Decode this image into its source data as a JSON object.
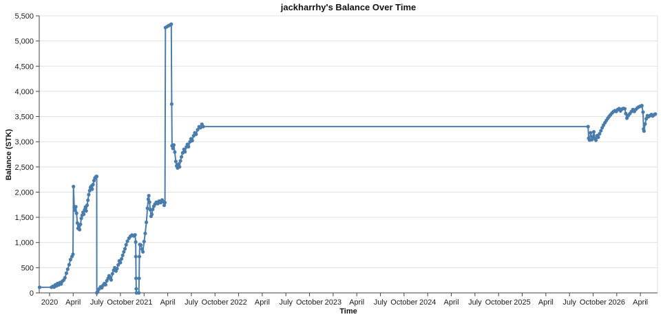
{
  "chart_data": {
    "type": "line",
    "title": "jackharrhy's Balance Over Time",
    "xlabel": "Time",
    "ylabel": "Balance (STK)",
    "xlim": [
      2019.891,
      2026.431
    ],
    "ylim": [
      0,
      5500
    ],
    "grid": "horizontal",
    "legend": "none",
    "colors": {
      "line": "#4a7cab",
      "grid": "#e0e0e0",
      "axis": "#424242",
      "text": "#1a1a1a"
    },
    "xticks": [
      {
        "v": 2020.0,
        "label": "2020"
      },
      {
        "v": 2020.25,
        "label": "April"
      },
      {
        "v": 2020.5,
        "label": "July"
      },
      {
        "v": 2020.75,
        "label": "October"
      },
      {
        "v": 2021.0,
        "label": "2021"
      },
      {
        "v": 2021.25,
        "label": "April"
      },
      {
        "v": 2021.5,
        "label": "July"
      },
      {
        "v": 2021.75,
        "label": "October"
      },
      {
        "v": 2022.0,
        "label": "2022"
      },
      {
        "v": 2022.25,
        "label": "April"
      },
      {
        "v": 2022.5,
        "label": "July"
      },
      {
        "v": 2022.75,
        "label": "October"
      },
      {
        "v": 2023.0,
        "label": "2023"
      },
      {
        "v": 2023.25,
        "label": "April"
      },
      {
        "v": 2023.5,
        "label": "July"
      },
      {
        "v": 2023.75,
        "label": "October"
      },
      {
        "v": 2024.0,
        "label": "2024"
      },
      {
        "v": 2024.25,
        "label": "April"
      },
      {
        "v": 2024.5,
        "label": "July"
      },
      {
        "v": 2024.75,
        "label": "October"
      },
      {
        "v": 2025.0,
        "label": "2025"
      },
      {
        "v": 2025.25,
        "label": "April"
      },
      {
        "v": 2025.5,
        "label": "July"
      },
      {
        "v": 2025.75,
        "label": "October"
      },
      {
        "v": 2026.0,
        "label": "2026"
      },
      {
        "v": 2026.25,
        "label": "April"
      }
    ],
    "yticks": [
      {
        "v": 0,
        "label": "0"
      },
      {
        "v": 500,
        "label": "500"
      },
      {
        "v": 1000,
        "label": "1,000"
      },
      {
        "v": 1500,
        "label": "1,500"
      },
      {
        "v": 2000,
        "label": "2,000"
      },
      {
        "v": 2500,
        "label": "2,500"
      },
      {
        "v": 3000,
        "label": "3,000"
      },
      {
        "v": 3500,
        "label": "3,500"
      },
      {
        "v": 4000,
        "label": "4,000"
      },
      {
        "v": 4500,
        "label": "4,500"
      },
      {
        "v": 5000,
        "label": "5,000"
      },
      {
        "v": 5500,
        "label": "5,500"
      }
    ],
    "series": [
      {
        "name": "balance",
        "points": [
          [
            2019.895,
            110
          ],
          [
            2020.02,
            112
          ],
          [
            2020.035,
            130
          ],
          [
            2020.048,
            115
          ],
          [
            2020.06,
            160
          ],
          [
            2020.073,
            138
          ],
          [
            2020.085,
            185
          ],
          [
            2020.098,
            158
          ],
          [
            2020.11,
            205
          ],
          [
            2020.123,
            178
          ],
          [
            2020.135,
            230
          ],
          [
            2020.15,
            255
          ],
          [
            2020.163,
            300
          ],
          [
            2020.178,
            390
          ],
          [
            2020.192,
            470
          ],
          [
            2020.207,
            560
          ],
          [
            2020.222,
            660
          ],
          [
            2020.237,
            720
          ],
          [
            2020.248,
            765
          ],
          [
            2020.253,
            2110
          ],
          [
            2020.262,
            1700
          ],
          [
            2020.27,
            1640
          ],
          [
            2020.278,
            1710
          ],
          [
            2020.286,
            1580
          ],
          [
            2020.294,
            1390
          ],
          [
            2020.302,
            1280
          ],
          [
            2020.31,
            1330
          ],
          [
            2020.318,
            1255
          ],
          [
            2020.327,
            1360
          ],
          [
            2020.336,
            1480
          ],
          [
            2020.345,
            1540
          ],
          [
            2020.354,
            1600
          ],
          [
            2020.362,
            1560
          ],
          [
            2020.371,
            1650
          ],
          [
            2020.38,
            1705
          ],
          [
            2020.388,
            1625
          ],
          [
            2020.397,
            1740
          ],
          [
            2020.406,
            1840
          ],
          [
            2020.415,
            1950
          ],
          [
            2020.424,
            2030
          ],
          [
            2020.433,
            2090
          ],
          [
            2020.442,
            2120
          ],
          [
            2020.451,
            2060
          ],
          [
            2020.46,
            2150
          ],
          [
            2020.47,
            2230
          ],
          [
            2020.48,
            2280
          ],
          [
            2020.493,
            2310
          ],
          [
            2020.499,
            2312
          ],
          [
            2020.5,
            0
          ],
          [
            2020.51,
            30
          ],
          [
            2020.525,
            80
          ],
          [
            2020.54,
            120
          ],
          [
            2020.553,
            100
          ],
          [
            2020.566,
            150
          ],
          [
            2020.58,
            185
          ],
          [
            2020.593,
            162
          ],
          [
            2020.606,
            240
          ],
          [
            2020.619,
            290
          ],
          [
            2020.63,
            340
          ],
          [
            2020.641,
            300
          ],
          [
            2020.652,
            258
          ],
          [
            2020.665,
            380
          ],
          [
            2020.678,
            450
          ],
          [
            2020.69,
            500
          ],
          [
            2020.702,
            432
          ],
          [
            2020.714,
            480
          ],
          [
            2020.726,
            555
          ],
          [
            2020.738,
            635
          ],
          [
            2020.75,
            600
          ],
          [
            2020.762,
            675
          ],
          [
            2020.774,
            745
          ],
          [
            2020.786,
            815
          ],
          [
            2020.798,
            875
          ],
          [
            2020.81,
            955
          ],
          [
            2020.824,
            1025
          ],
          [
            2020.84,
            1085
          ],
          [
            2020.856,
            1125
          ],
          [
            2020.872,
            1148
          ],
          [
            2020.89,
            1132
          ],
          [
            2020.905,
            1152
          ],
          [
            2020.911,
            1010
          ],
          [
            2020.913,
            720
          ],
          [
            2020.915,
            290
          ],
          [
            2020.917,
            80
          ],
          [
            2020.919,
            0
          ],
          [
            2020.945,
            0
          ],
          [
            2020.948,
            290
          ],
          [
            2020.951,
            720
          ],
          [
            2020.954,
            960
          ],
          [
            2020.966,
            950
          ],
          [
            2020.978,
            868
          ],
          [
            2020.988,
            815
          ],
          [
            2021.0,
            1020
          ],
          [
            2021.012,
            1180
          ],
          [
            2021.024,
            1400
          ],
          [
            2021.036,
            1680
          ],
          [
            2021.044,
            1860
          ],
          [
            2021.05,
            1930
          ],
          [
            2021.058,
            1800
          ],
          [
            2021.066,
            1650
          ],
          [
            2021.074,
            1520
          ],
          [
            2021.082,
            1560
          ],
          [
            2021.092,
            1660
          ],
          [
            2021.103,
            1720
          ],
          [
            2021.115,
            1762
          ],
          [
            2021.13,
            1800
          ],
          [
            2021.145,
            1772
          ],
          [
            2021.16,
            1822
          ],
          [
            2021.175,
            1790
          ],
          [
            2021.19,
            1845
          ],
          [
            2021.203,
            1808
          ],
          [
            2021.213,
            1738
          ],
          [
            2021.221,
            1792
          ],
          [
            2021.226,
            5265
          ],
          [
            2021.242,
            5285
          ],
          [
            2021.258,
            5302
          ],
          [
            2021.274,
            5318
          ],
          [
            2021.288,
            5335
          ],
          [
            2021.292,
            3747
          ],
          [
            2021.296,
            2920
          ],
          [
            2021.305,
            2868
          ],
          [
            2021.315,
            2935
          ],
          [
            2021.325,
            2795
          ],
          [
            2021.335,
            2610
          ],
          [
            2021.345,
            2520
          ],
          [
            2021.355,
            2480
          ],
          [
            2021.365,
            2558
          ],
          [
            2021.375,
            2502
          ],
          [
            2021.385,
            2620
          ],
          [
            2021.396,
            2700
          ],
          [
            2021.408,
            2778
          ],
          [
            2021.422,
            2850
          ],
          [
            2021.433,
            2800
          ],
          [
            2021.447,
            2898
          ],
          [
            2021.458,
            2948
          ],
          [
            2021.47,
            2902
          ],
          [
            2021.485,
            3000
          ],
          [
            2021.497,
            3058
          ],
          [
            2021.509,
            3022
          ],
          [
            2021.524,
            3118
          ],
          [
            2021.537,
            3178
          ],
          [
            2021.55,
            3148
          ],
          [
            2021.566,
            3238
          ],
          [
            2021.582,
            3298
          ],
          [
            2021.596,
            3278
          ],
          [
            2021.612,
            3348
          ],
          [
            2021.625,
            3302
          ],
          [
            2025.697,
            3302
          ],
          [
            2025.703,
            3070
          ],
          [
            2025.712,
            3032
          ],
          [
            2025.724,
            3178
          ],
          [
            2025.737,
            3042
          ],
          [
            2025.747,
            3098
          ],
          [
            2025.757,
            3198
          ],
          [
            2025.77,
            3062
          ],
          [
            2025.78,
            3030
          ],
          [
            2025.792,
            3120
          ],
          [
            2025.805,
            3088
          ],
          [
            2025.818,
            3158
          ],
          [
            2025.832,
            3218
          ],
          [
            2025.846,
            3278
          ],
          [
            2025.86,
            3330
          ],
          [
            2025.875,
            3378
          ],
          [
            2025.89,
            3422
          ],
          [
            2025.905,
            3465
          ],
          [
            2025.92,
            3502
          ],
          [
            2025.935,
            3538
          ],
          [
            2025.95,
            3570
          ],
          [
            2025.965,
            3598
          ],
          [
            2025.98,
            3620
          ],
          [
            2025.995,
            3600
          ],
          [
            2026.01,
            3638
          ],
          [
            2026.025,
            3658
          ],
          [
            2026.04,
            3612
          ],
          [
            2026.055,
            3648
          ],
          [
            2026.07,
            3662
          ],
          [
            2026.085,
            3655
          ],
          [
            2026.095,
            3560
          ],
          [
            2026.108,
            3468
          ],
          [
            2026.122,
            3520
          ],
          [
            2026.138,
            3558
          ],
          [
            2026.154,
            3598
          ],
          [
            2026.17,
            3638
          ],
          [
            2026.186,
            3602
          ],
          [
            2026.202,
            3642
          ],
          [
            2026.218,
            3672
          ],
          [
            2026.234,
            3692
          ],
          [
            2026.25,
            3705
          ],
          [
            2026.266,
            3718
          ],
          [
            2026.278,
            3588
          ],
          [
            2026.284,
            3255
          ],
          [
            2026.288,
            3212
          ],
          [
            2026.3,
            3352
          ],
          [
            2026.312,
            3458
          ],
          [
            2026.324,
            3518
          ],
          [
            2026.338,
            3498
          ],
          [
            2026.352,
            3520
          ],
          [
            2026.366,
            3540
          ],
          [
            2026.38,
            3512
          ],
          [
            2026.394,
            3535
          ],
          [
            2026.408,
            3550
          ]
        ]
      }
    ]
  }
}
